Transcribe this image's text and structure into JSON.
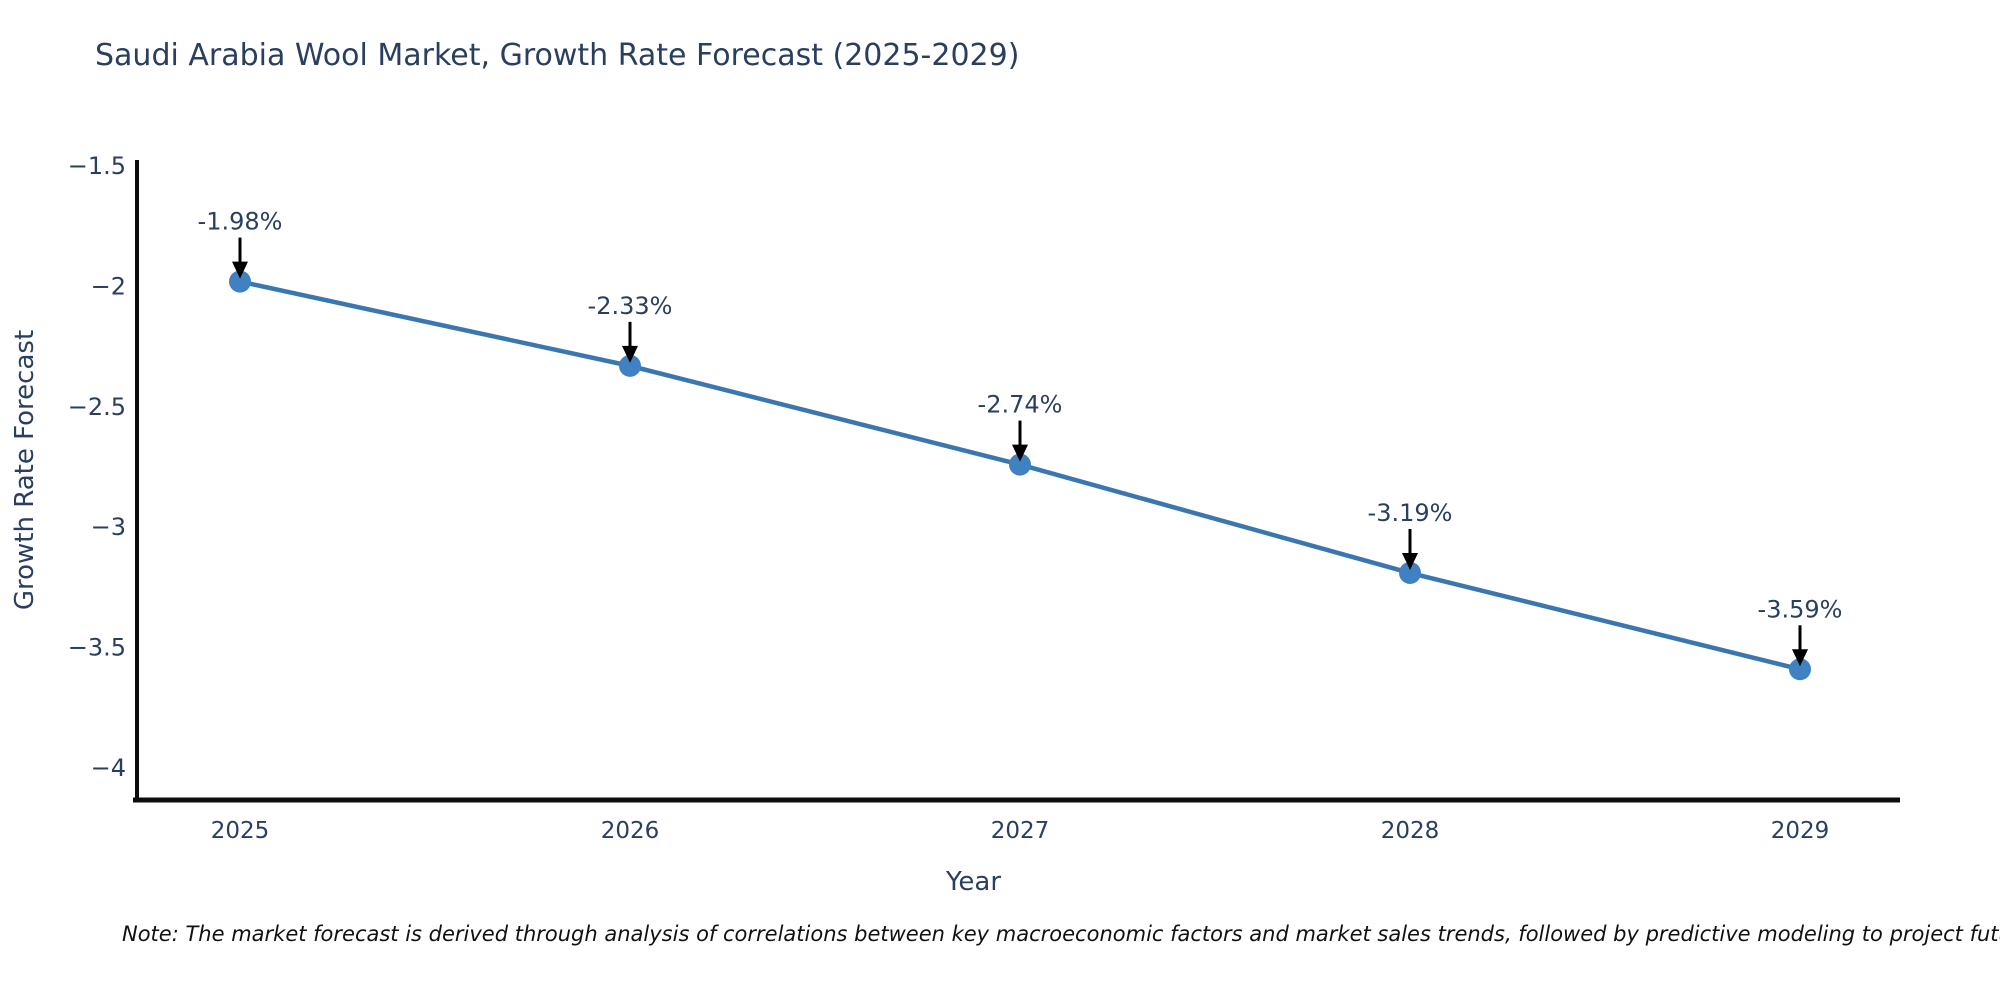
{
  "page": {
    "title": "Saudi Arabia Wool Market, Growth Rate Forecast (2025-2029)",
    "note": "Note: The market forecast is derived through analysis of correlations between key macroeconomic factors and market sales trends, followed by predictive modeling to project future sa"
  },
  "chart_data": {
    "type": "line",
    "title": "Saudi Arabia Wool Market, Growth Rate Forecast (2025-2029)",
    "xlabel": "Year",
    "ylabel": "Growth Rate Forecast",
    "categories": [
      "2025",
      "2026",
      "2027",
      "2028",
      "2029"
    ],
    "series": [
      {
        "name": "Growth Rate Forecast",
        "values": [
          -1.98,
          -2.33,
          -2.74,
          -3.19,
          -3.59
        ]
      }
    ],
    "point_labels": [
      "-1.98%",
      "-2.33%",
      "-2.74%",
      "-3.19%",
      "-3.59%"
    ],
    "yticks": [
      -1.5,
      -2,
      -2.5,
      -3,
      -3.5,
      -4
    ],
    "ytick_labels": [
      "−1.5",
      "−2",
      "−2.5",
      "−3",
      "−3.5",
      "−4"
    ],
    "ylim": [
      -4.15,
      -1.48
    ],
    "grid": false,
    "legend_position": "none",
    "annotation_style": "value-label-with-down-arrow",
    "colors": {
      "line": "#3a77b0",
      "marker": "#3f81c1",
      "axis": "#0d0d0d",
      "text": "#2a3f5f",
      "arrow": "#000000",
      "background": "#ffffff"
    }
  }
}
